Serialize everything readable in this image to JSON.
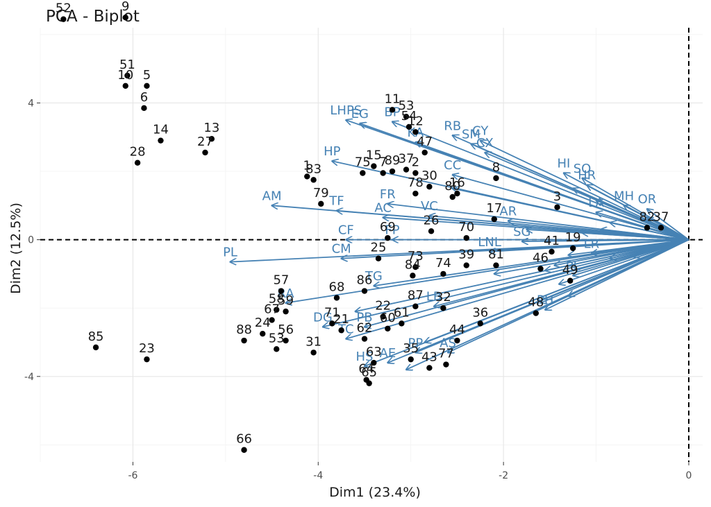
{
  "colors": {
    "variable": "#4682b4",
    "individual": "#000000",
    "refline": "#000000"
  },
  "chart_data": {
    "type": "scatter",
    "title": "PCA - Biplot",
    "xlabel": "Dim1 (23.4%)",
    "ylabel": "Dim2 (12.5%)",
    "xlim": [
      -7.0,
      0.15
    ],
    "ylim": [
      -6.5,
      6.2
    ],
    "x_ticks": [
      -6,
      -4,
      -2,
      0
    ],
    "y_ticks": [
      -4,
      0,
      4
    ],
    "x_tick_labels": [
      "-6",
      "-4",
      "-2",
      "0"
    ],
    "y_tick_labels": [
      "-4",
      "0",
      "4"
    ],
    "grid": true,
    "reference_lines": [
      "x=0 dashed",
      "y=0 dashed"
    ],
    "individuals": [
      {
        "label": "52",
        "x": -6.75,
        "y": 6.45
      },
      {
        "label": "9",
        "x": -6.08,
        "y": 6.5
      },
      {
        "label": "51",
        "x": -6.06,
        "y": 4.8
      },
      {
        "label": "10",
        "x": -6.08,
        "y": 4.5
      },
      {
        "label": "5",
        "x": -5.85,
        "y": 4.5
      },
      {
        "label": "6",
        "x": -5.88,
        "y": 3.85
      },
      {
        "label": "14",
        "x": -5.7,
        "y": 2.9
      },
      {
        "label": "13",
        "x": -5.15,
        "y": 2.95
      },
      {
        "label": "27",
        "x": -5.22,
        "y": 2.55
      },
      {
        "label": "28",
        "x": -5.95,
        "y": 2.25
      },
      {
        "label": "1",
        "x": -4.12,
        "y": 1.85
      },
      {
        "label": "83",
        "x": -4.05,
        "y": 1.75
      },
      {
        "label": "79",
        "x": -3.97,
        "y": 1.05
      },
      {
        "label": "75",
        "x": -3.52,
        "y": 1.95
      },
      {
        "label": "15",
        "x": -3.4,
        "y": 2.15
      },
      {
        "label": "7",
        "x": -3.3,
        "y": 1.95
      },
      {
        "label": "89",
        "x": -3.2,
        "y": 2.0
      },
      {
        "label": "37",
        "x": -3.05,
        "y": 2.05
      },
      {
        "label": "2",
        "x": -2.95,
        "y": 1.95
      },
      {
        "label": "11",
        "x": -3.2,
        "y": 3.8
      },
      {
        "label": "53",
        "x": -3.05,
        "y": 3.6
      },
      {
        "label": "54",
        "x": -3.02,
        "y": 3.3
      },
      {
        "label": "12",
        "x": -2.95,
        "y": 3.15
      },
      {
        "label": "47",
        "x": -2.85,
        "y": 2.55
      },
      {
        "label": "30",
        "x": -2.8,
        "y": 1.55
      },
      {
        "label": "78",
        "x": -2.95,
        "y": 1.35
      },
      {
        "label": "16",
        "x": -2.5,
        "y": 1.35
      },
      {
        "label": "80",
        "x": -2.55,
        "y": 1.25
      },
      {
        "label": "8",
        "x": -2.08,
        "y": 1.8
      },
      {
        "label": "3",
        "x": -1.42,
        "y": 0.95
      },
      {
        "label": "17",
        "x": -2.1,
        "y": 0.6
      },
      {
        "label": "26",
        "x": -2.78,
        "y": 0.25
      },
      {
        "label": "70",
        "x": -2.4,
        "y": 0.05
      },
      {
        "label": "69",
        "x": -3.25,
        "y": 0.05
      },
      {
        "label": "25",
        "x": -3.35,
        "y": -0.55
      },
      {
        "label": "39",
        "x": -2.4,
        "y": -0.75
      },
      {
        "label": "81",
        "x": -2.08,
        "y": -0.75
      },
      {
        "label": "41",
        "x": -1.48,
        "y": -0.35
      },
      {
        "label": "19",
        "x": -1.25,
        "y": -0.25
      },
      {
        "label": "46",
        "x": -1.6,
        "y": -0.85
      },
      {
        "label": "73",
        "x": -2.95,
        "y": -0.8
      },
      {
        "label": "84",
        "x": -2.98,
        "y": -1.05
      },
      {
        "label": "74",
        "x": -2.65,
        "y": -1.0
      },
      {
        "label": "49",
        "x": -1.28,
        "y": -1.2
      },
      {
        "label": "48",
        "x": -1.65,
        "y": -2.15
      },
      {
        "label": "57",
        "x": -4.4,
        "y": -1.5
      },
      {
        "label": "58",
        "x": -4.45,
        "y": -2.05
      },
      {
        "label": "59",
        "x": -4.35,
        "y": -2.1
      },
      {
        "label": "67",
        "x": -4.5,
        "y": -2.35
      },
      {
        "label": "24",
        "x": -4.6,
        "y": -2.75
      },
      {
        "label": "53",
        "x": -4.45,
        "y": -3.2
      },
      {
        "label": "56",
        "x": -4.35,
        "y": -2.95
      },
      {
        "label": "68",
        "x": -3.8,
        "y": -1.7
      },
      {
        "label": "86",
        "x": -3.5,
        "y": -1.5
      },
      {
        "label": "71",
        "x": -3.85,
        "y": -2.45
      },
      {
        "label": "21",
        "x": -3.75,
        "y": -2.65
      },
      {
        "label": "31",
        "x": -4.05,
        "y": -3.3
      },
      {
        "label": "88",
        "x": -4.8,
        "y": -2.95
      },
      {
        "label": "62",
        "x": -3.5,
        "y": -2.9
      },
      {
        "label": "22",
        "x": -3.3,
        "y": -2.25
      },
      {
        "label": "60",
        "x": -3.25,
        "y": -2.6
      },
      {
        "label": "61",
        "x": -3.1,
        "y": -2.45
      },
      {
        "label": "87",
        "x": -2.95,
        "y": -1.95
      },
      {
        "label": "32",
        "x": -2.65,
        "y": -2.0
      },
      {
        "label": "36",
        "x": -2.25,
        "y": -2.45
      },
      {
        "label": "44",
        "x": -2.5,
        "y": -2.95
      },
      {
        "label": "63",
        "x": -3.4,
        "y": -3.6
      },
      {
        "label": "35",
        "x": -3.0,
        "y": -3.5
      },
      {
        "label": "43",
        "x": -2.8,
        "y": -3.75
      },
      {
        "label": "77",
        "x": -2.62,
        "y": -3.65
      },
      {
        "label": "64",
        "x": -3.48,
        "y": -4.1
      },
      {
        "label": "65",
        "x": -3.45,
        "y": -4.2
      },
      {
        "label": "85",
        "x": -6.4,
        "y": -3.15
      },
      {
        "label": "23",
        "x": -5.85,
        "y": -3.5
      },
      {
        "label": "66",
        "x": -4.8,
        "y": -6.15
      },
      {
        "label": "82",
        "x": -0.45,
        "y": 0.35
      },
      {
        "label": "37",
        "x": -0.3,
        "y": 0.35
      }
    ],
    "variables": [
      {
        "label": "LHPS",
        "x": -3.7,
        "y": 3.5
      },
      {
        "label": "EG",
        "x": -3.55,
        "y": 3.4
      },
      {
        "label": "BP",
        "x": -3.2,
        "y": 3.45
      },
      {
        "label": "RB",
        "x": -2.55,
        "y": 3.05
      },
      {
        "label": "KA",
        "x": -2.95,
        "y": 2.85
      },
      {
        "label": "SM",
        "x": -2.35,
        "y": 2.8
      },
      {
        "label": "CY",
        "x": -2.25,
        "y": 2.9
      },
      {
        "label": "CX",
        "x": -2.2,
        "y": 2.55
      },
      {
        "label": "HP",
        "x": -3.85,
        "y": 2.3
      },
      {
        "label": "HI",
        "x": -1.35,
        "y": 1.95
      },
      {
        "label": "SO",
        "x": -1.15,
        "y": 1.8
      },
      {
        "label": "HR",
        "x": -1.1,
        "y": 1.6
      },
      {
        "label": "CC",
        "x": -2.55,
        "y": 1.9
      },
      {
        "label": "AM",
        "x": -4.5,
        "y": 1.0
      },
      {
        "label": "TF",
        "x": -3.8,
        "y": 0.85
      },
      {
        "label": "FR",
        "x": -3.25,
        "y": 1.05
      },
      {
        "label": "AC",
        "x": -3.3,
        "y": 0.65
      },
      {
        "label": "VC",
        "x": -2.8,
        "y": 0.7
      },
      {
        "label": "AR",
        "x": -1.95,
        "y": 0.55
      },
      {
        "label": "LA",
        "x": -1.0,
        "y": 0.8
      },
      {
        "label": "MH",
        "x": -0.7,
        "y": 1.0
      },
      {
        "label": "OR",
        "x": -0.45,
        "y": 0.9
      },
      {
        "label": "CF",
        "x": -3.7,
        "y": 0.0
      },
      {
        "label": "FP",
        "x": -3.2,
        "y": 0.0
      },
      {
        "label": "CM",
        "x": -3.75,
        "y": -0.55
      },
      {
        "label": "PL",
        "x": -4.95,
        "y": -0.65
      },
      {
        "label": "SG",
        "x": -1.8,
        "y": -0.05
      },
      {
        "label": "LNL",
        "x": -2.15,
        "y": -0.35
      },
      {
        "label": "LR",
        "x": -1.05,
        "y": -0.4
      },
      {
        "label": "TG",
        "x": -3.4,
        "y": -1.35
      },
      {
        "label": "LB",
        "x": -2.75,
        "y": -1.95
      },
      {
        "label": "PH",
        "x": -1.55,
        "y": -2.05
      },
      {
        "label": "RA",
        "x": -4.35,
        "y": -1.85
      },
      {
        "label": "DG",
        "x": -3.95,
        "y": -2.55
      },
      {
        "label": "PB",
        "x": -3.5,
        "y": -2.55
      },
      {
        "label": "TC",
        "x": -3.7,
        "y": -2.9
      },
      {
        "label": "HS",
        "x": -3.5,
        "y": -3.7
      },
      {
        "label": "AE",
        "x": -3.25,
        "y": -3.6
      },
      {
        "label": "PP",
        "x": -2.95,
        "y": -3.3
      },
      {
        "label": "AS",
        "x": -2.6,
        "y": -3.3
      },
      {
        "label": "PL",
        "x": -1.25,
        "y": -1.05
      }
    ],
    "extra_arrow_ends": [
      {
        "x": -1.25,
        "y": 1.5
      },
      {
        "x": -1.0,
        "y": 1.15
      },
      {
        "x": -0.85,
        "y": 0.5
      },
      {
        "x": -0.95,
        "y": 0.3
      },
      {
        "x": -1.15,
        "y": 0.2
      },
      {
        "x": -1.3,
        "y": -0.45
      },
      {
        "x": -1.45,
        "y": -0.75
      },
      {
        "x": -1.55,
        "y": -0.9
      },
      {
        "x": -1.4,
        "y": -1.3
      },
      {
        "x": -1.3,
        "y": -1.65
      },
      {
        "x": -1.6,
        "y": -1.85
      },
      {
        "x": -0.85,
        "y": -0.55
      },
      {
        "x": -0.6,
        "y": -0.5
      },
      {
        "x": -0.45,
        "y": 0.65
      },
      {
        "x": -1.75,
        "y": 0.3
      },
      {
        "x": -2.55,
        "y": 1.5
      },
      {
        "x": -2.1,
        "y": -1.0
      },
      {
        "x": -2.85,
        "y": -3.0
      },
      {
        "x": -3.05,
        "y": -3.8
      },
      {
        "x": -3.6,
        "y": -2.1
      }
    ]
  }
}
